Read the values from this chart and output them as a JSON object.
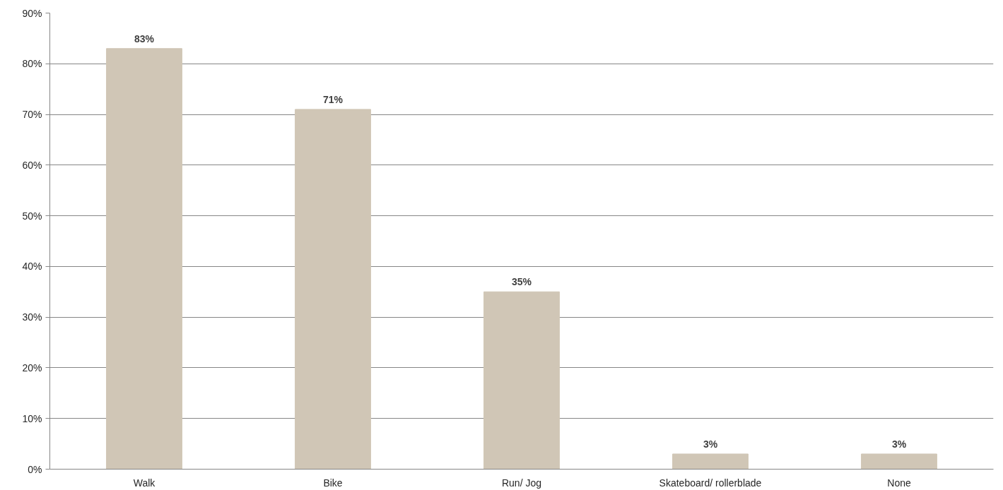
{
  "chart_data": {
    "type": "bar",
    "categories": [
      "Walk",
      "Bike",
      "Run/ Jog",
      "Skateboard/ rollerblade",
      "None"
    ],
    "values": [
      83,
      71,
      35,
      3,
      3
    ],
    "color": "#d0c6b6",
    "value_labels": [
      "83%",
      "71%",
      "35%",
      "3%",
      "3%"
    ],
    "ylim": [
      0,
      90
    ],
    "yticks": [
      {
        "value": 0,
        "label": "0%"
      },
      {
        "value": 10,
        "label": "10%"
      },
      {
        "value": 20,
        "label": "20%"
      },
      {
        "value": 30,
        "label": "30%"
      },
      {
        "value": 40,
        "label": "40%"
      },
      {
        "value": 50,
        "label": "50%"
      },
      {
        "value": 60,
        "label": "60%"
      },
      {
        "value": 70,
        "label": "70%"
      },
      {
        "value": 80,
        "label": "80%"
      },
      {
        "value": 90,
        "label": "90%"
      }
    ],
    "grid": "y"
  }
}
